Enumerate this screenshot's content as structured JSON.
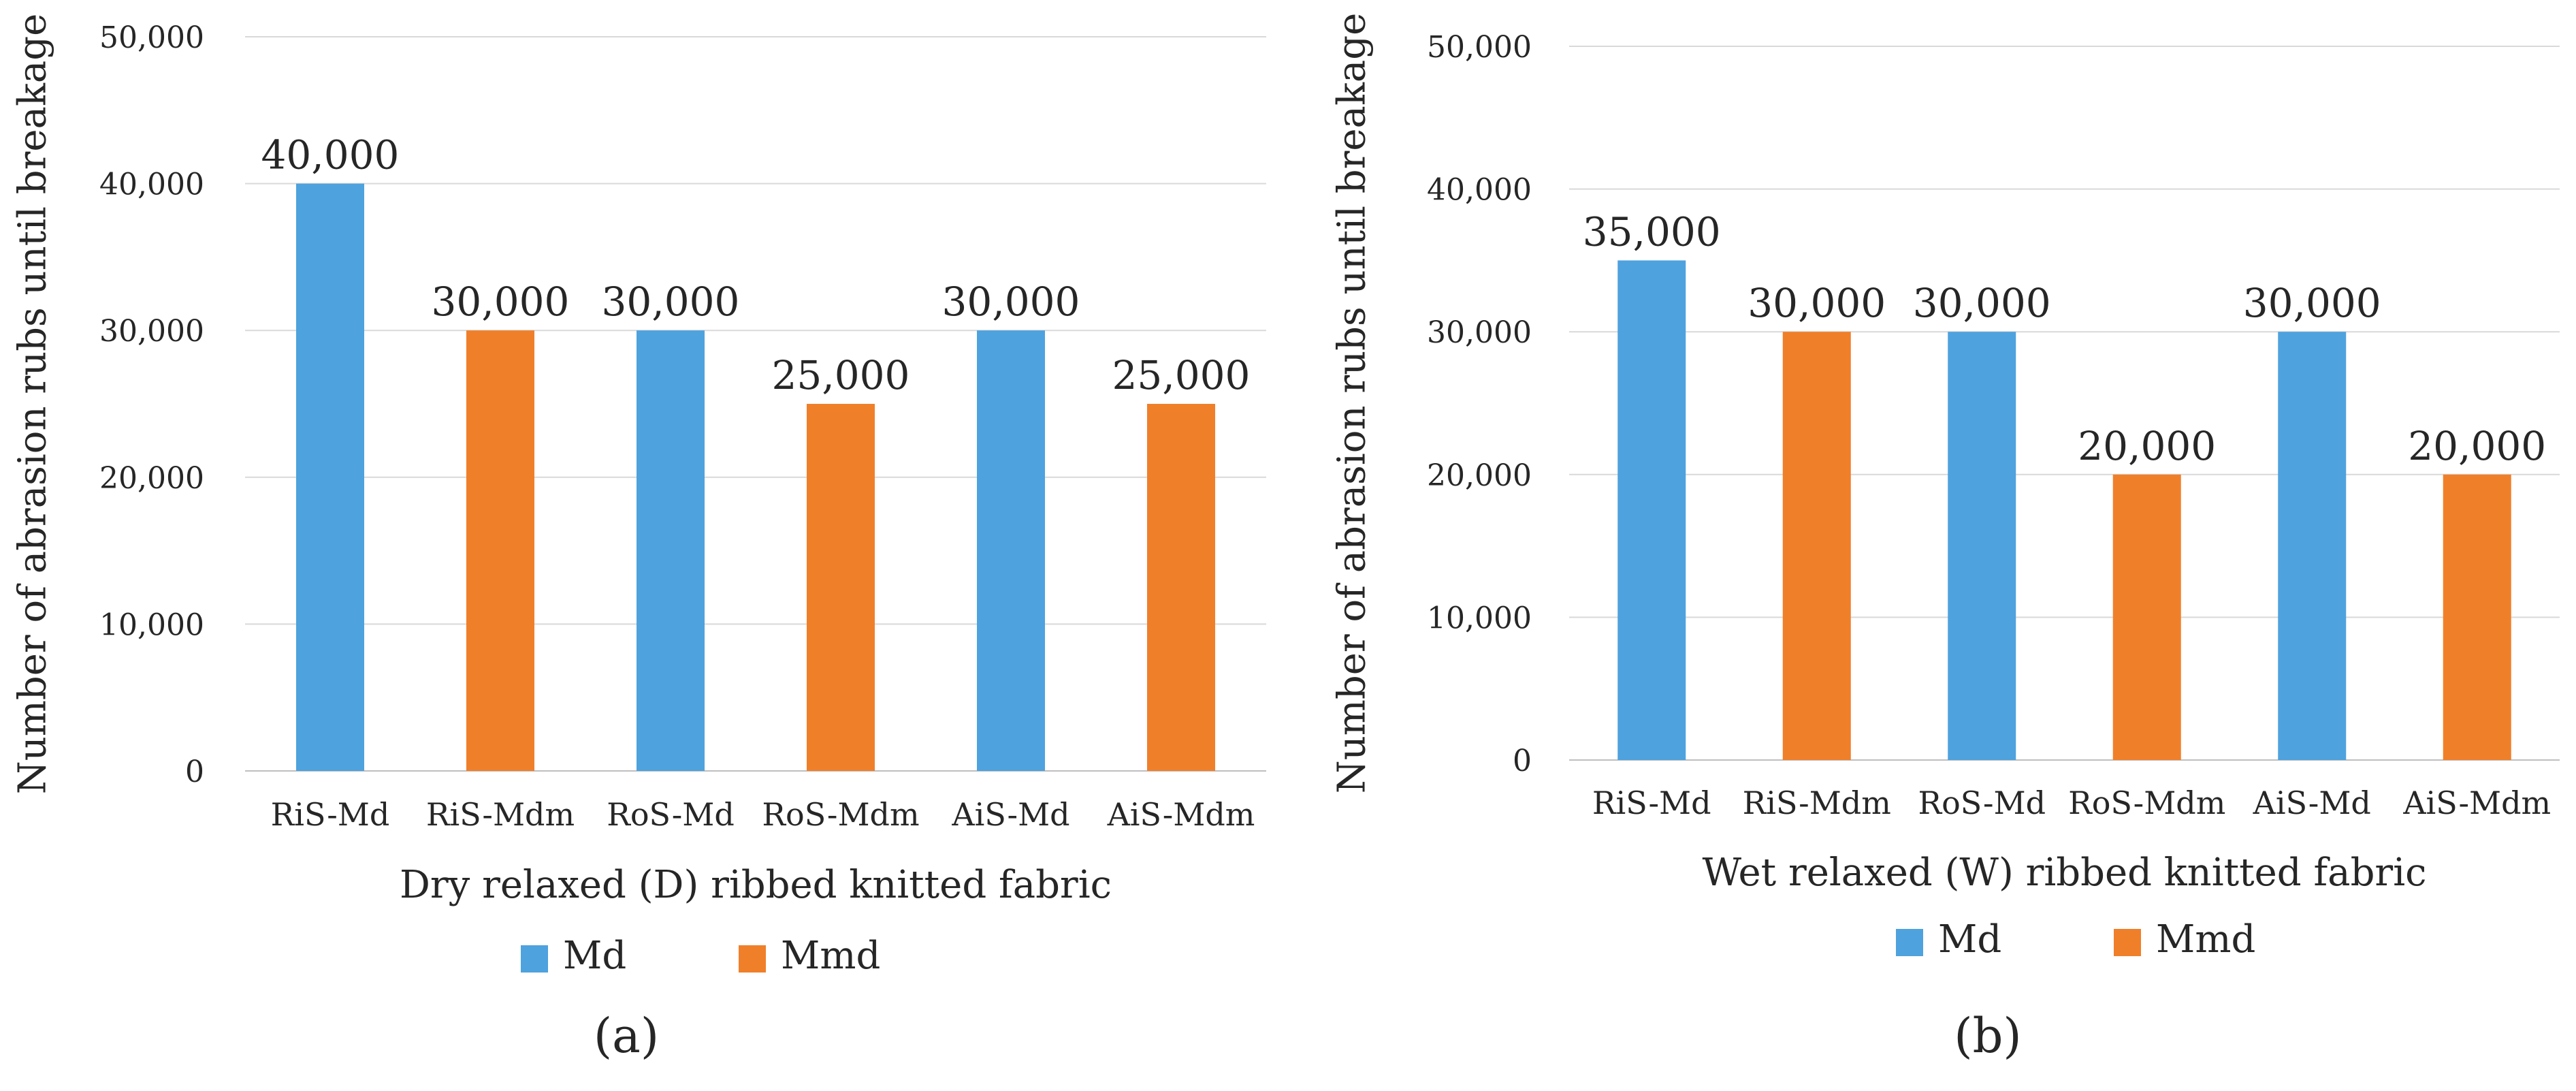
{
  "colors": {
    "md": "#4ea2de",
    "mmd": "#f07f2a",
    "grid": "#d9d9d9",
    "text": "#262626"
  },
  "chart_data": [
    {
      "type": "bar",
      "panel_label": "(a)",
      "xlabel": "Dry relaxed (D) ribbed knitted fabric",
      "ylabel": "Number of abrasion rubs until breakage",
      "ylim": [
        0,
        50000
      ],
      "yticks": [
        "0",
        "10,000",
        "20,000",
        "30,000",
        "40,000",
        "50,000"
      ],
      "categories": [
        "RiS-Md",
        "RiS-Mdm",
        "RoS-Md",
        "RoS-Mdm",
        "AiS-Md",
        "AiS-Mdm"
      ],
      "values": [
        40000,
        30000,
        30000,
        25000,
        30000,
        25000
      ],
      "value_labels": [
        "40,000",
        "30,000",
        "30,000",
        "25,000",
        "30,000",
        "25,000"
      ],
      "series_index": [
        0,
        1,
        0,
        1,
        0,
        1
      ],
      "legend": [
        "Md",
        "Mmd"
      ],
      "legend_position": "bottom"
    },
    {
      "type": "bar",
      "panel_label": "(b)",
      "xlabel": "Wet relaxed (W) ribbed knitted fabric",
      "ylabel": "Number of abrasion rubs until breakage",
      "ylim": [
        0,
        50000
      ],
      "yticks": [
        "0",
        "10,000",
        "20,000",
        "30,000",
        "40,000",
        "50,000"
      ],
      "categories": [
        "RiS-Md",
        "RiS-Mdm",
        "RoS-Md",
        "RoS-Mdm",
        "AiS-Md",
        "AiS-Mdm"
      ],
      "values": [
        35000,
        30000,
        30000,
        20000,
        30000,
        20000
      ],
      "value_labels": [
        "35,000",
        "30,000",
        "30,000",
        "20,000",
        "30,000",
        "20,000"
      ],
      "series_index": [
        0,
        1,
        0,
        1,
        0,
        1
      ],
      "legend": [
        "Md",
        "Mmd"
      ],
      "legend_position": "bottom"
    }
  ]
}
